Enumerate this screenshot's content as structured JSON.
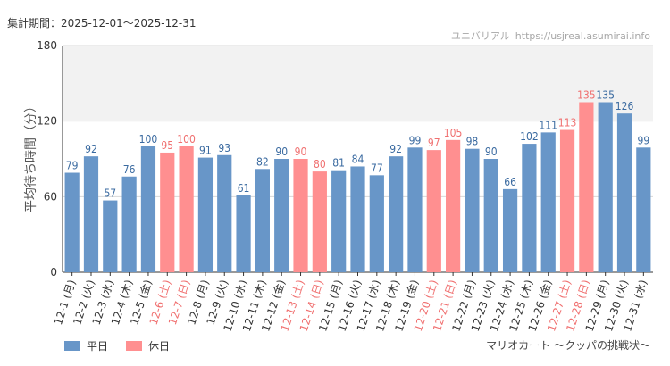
{
  "period": {
    "label": "集計期間：",
    "range": "2025-12-01～2025-12-31"
  },
  "source": {
    "site": "ユニバリアル",
    "url": "https://usjreal.asumirai.info"
  },
  "attraction": "マリオカート 〜クッパの挑戦状〜",
  "legend": [
    {
      "label": "平日",
      "color": "#6896c8"
    },
    {
      "label": "休日",
      "color": "#ff8f90"
    }
  ],
  "colors": {
    "weekday": "#6896c8",
    "holiday": "#ff8f90",
    "holiday_text": "#f07070",
    "weekday_text": "#3a6aa0"
  },
  "chart_data": {
    "type": "bar",
    "ylabel": "平均待ち時間（分）",
    "ylim": [
      0,
      180
    ],
    "yticks": [
      0,
      60,
      120,
      180
    ],
    "highlight_band": [
      120,
      180
    ],
    "categories": [
      "12-1 (月)",
      "12-2 (火)",
      "12-3 (水)",
      "12-4 (木)",
      "12-5 (金)",
      "12-6 (土)",
      "12-7 (日)",
      "12-8 (月)",
      "12-9 (火)",
      "12-10 (水)",
      "12-11 (木)",
      "12-12 (金)",
      "12-13 (土)",
      "12-14 (日)",
      "12-15 (月)",
      "12-16 (火)",
      "12-17 (水)",
      "12-18 (木)",
      "12-19 (金)",
      "12-20 (土)",
      "12-21 (日)",
      "12-22 (月)",
      "12-23 (火)",
      "12-24 (水)",
      "12-25 (木)",
      "12-26 (金)",
      "12-27 (土)",
      "12-28 (日)",
      "12-29 (月)",
      "12-30 (火)",
      "12-31 (水)"
    ],
    "values": [
      79,
      92,
      57,
      76,
      100,
      95,
      100,
      91,
      93,
      61,
      82,
      90,
      90,
      80,
      81,
      84,
      77,
      92,
      99,
      97,
      105,
      98,
      90,
      66,
      102,
      111,
      113,
      135,
      135,
      126,
      99
    ],
    "holiday": [
      false,
      false,
      false,
      false,
      false,
      true,
      true,
      false,
      false,
      false,
      false,
      false,
      true,
      true,
      false,
      false,
      false,
      false,
      false,
      true,
      true,
      false,
      false,
      false,
      false,
      false,
      true,
      true,
      false,
      false,
      false
    ]
  }
}
